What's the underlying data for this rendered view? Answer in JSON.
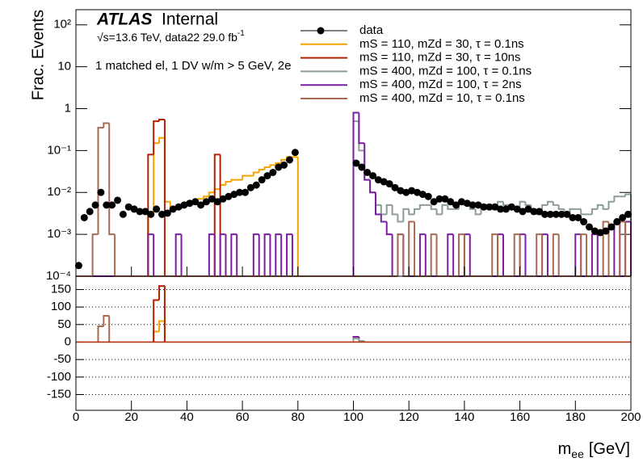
{
  "chart_data": [
    {
      "type": "histogram",
      "title": "ATLAS",
      "title_suffix": "Internal",
      "subtitle": "√s=13.6 TeV, data22 29.0 fb",
      "subtitle_superscript": "-1",
      "annotation": "1 matched el, 1 DV w/m > 5 GeV, 2e",
      "y_label": "Frac. Events",
      "log_y": true,
      "xlim": [
        0,
        200
      ],
      "ylim": [
        0.0001,
        230
      ],
      "yticks": [
        {
          "value": 0.0001,
          "label": "10⁻⁴"
        },
        {
          "value": 0.001,
          "label": "10⁻³"
        },
        {
          "value": 0.01,
          "label": "10⁻²"
        },
        {
          "value": 0.1,
          "label": "10⁻¹"
        },
        1,
        10,
        {
          "value": 100,
          "label": "10²"
        }
      ],
      "bins": [
        0,
        2,
        4,
        6,
        8,
        10,
        12,
        14,
        16,
        18,
        20,
        22,
        24,
        26,
        28,
        30,
        32,
        34,
        36,
        38,
        40,
        42,
        44,
        46,
        48,
        50,
        52,
        54,
        56,
        58,
        60,
        62,
        64,
        66,
        68,
        70,
        72,
        74,
        76,
        78,
        80,
        82,
        84,
        86,
        88,
        90,
        92,
        94,
        96,
        98,
        100,
        102,
        104,
        106,
        108,
        110,
        112,
        114,
        116,
        118,
        120,
        122,
        124,
        126,
        128,
        130,
        132,
        134,
        136,
        138,
        140,
        142,
        144,
        146,
        148,
        150,
        152,
        154,
        156,
        158,
        160,
        162,
        164,
        166,
        168,
        170,
        172,
        174,
        176,
        178,
        180,
        182,
        184,
        186,
        188,
        190,
        192,
        194,
        196,
        198,
        200
      ],
      "series": [
        {
          "name": "data",
          "color": "#000000",
          "x": [
            1,
            3,
            5,
            7,
            9,
            11,
            13,
            15,
            17,
            19,
            21,
            23,
            25,
            27,
            29,
            31,
            33,
            35,
            37,
            39,
            41,
            43,
            45,
            47,
            49,
            51,
            53,
            55,
            57,
            59,
            61,
            63,
            65,
            67,
            69,
            71,
            73,
            75,
            77,
            79,
            101,
            103,
            105,
            107,
            109,
            111,
            113,
            115,
            117,
            119,
            121,
            123,
            125,
            127,
            129,
            131,
            133,
            135,
            137,
            139,
            141,
            143,
            145,
            147,
            149,
            151,
            153,
            155,
            157,
            159,
            161,
            163,
            165,
            167,
            169,
            171,
            173,
            175,
            177,
            179,
            181,
            183,
            185,
            187,
            189,
            191,
            193,
            195,
            197,
            199
          ],
          "values": [
            0.00018,
            0.0025,
            0.0035,
            0.005,
            0.01,
            0.005,
            0.005,
            0.0065,
            0.003,
            0.0045,
            0.004,
            0.0035,
            0.0035,
            0.003,
            0.004,
            0.003,
            0.0032,
            0.004,
            0.0045,
            0.005,
            0.0055,
            0.006,
            0.005,
            0.006,
            0.007,
            0.006,
            0.007,
            0.008,
            0.009,
            0.01,
            0.01,
            0.013,
            0.015,
            0.02,
            0.025,
            0.03,
            0.04,
            0.045,
            0.06,
            0.09,
            0.05,
            0.04,
            0.03,
            0.025,
            0.02,
            0.018,
            0.016,
            0.013,
            0.011,
            0.01,
            0.011,
            0.01,
            0.009,
            0.008,
            0.006,
            0.007,
            0.007,
            0.006,
            0.005,
            0.006,
            0.0055,
            0.005,
            0.005,
            0.0045,
            0.0045,
            0.0045,
            0.004,
            0.004,
            0.0045,
            0.004,
            0.0035,
            0.004,
            0.0035,
            0.0035,
            0.003,
            0.003,
            0.003,
            0.003,
            0.003,
            0.0025,
            0.0025,
            0.002,
            0.0015,
            0.0012,
            0.0011,
            0.0012,
            0.0015,
            0.002,
            0.0025,
            0.003
          ]
        },
        {
          "name": "mS = 110, mZd = 30, τ = 0.1ns",
          "color": "#f5a300",
          "bins": [
            26,
            28,
            30,
            32,
            34,
            36,
            38,
            40,
            42,
            44,
            46,
            48,
            50,
            52,
            54,
            56,
            58,
            60,
            62,
            64,
            66,
            68,
            70,
            72,
            74,
            76,
            78,
            80
          ],
          "values": [
            0.003,
            0.15,
            0.2,
            0.006,
            0.004,
            0.004,
            0.005,
            0.006,
            0.006,
            0.007,
            0.008,
            0.01,
            0.012,
            0.015,
            0.018,
            0.02,
            0.02,
            0.025,
            0.025,
            0.03,
            0.035,
            0.04,
            0.045,
            0.05,
            0.06,
            0.07,
            0.07
          ]
        },
        {
          "name": "mS = 110, mZd = 30, τ = 10ns",
          "color": "#b22200",
          "bins": [
            26,
            28,
            30,
            32,
            50,
            52
          ],
          "values": [
            0.08,
            0.5,
            0.55,
            0,
            0.08
          ]
        },
        {
          "name": "mS = 400, mZd = 100, τ = 0.1ns",
          "color": "#8c9c98",
          "bins": [
            100,
            102,
            104,
            106,
            108,
            110,
            112,
            114,
            116,
            118,
            120,
            122,
            124,
            126,
            128,
            130,
            132,
            134,
            136,
            138,
            140,
            142,
            144,
            146,
            148,
            150,
            152,
            154,
            156,
            158,
            160,
            162,
            164,
            166,
            168,
            170,
            172,
            174,
            176,
            178,
            180,
            182,
            184,
            186,
            188,
            190,
            192,
            194,
            196,
            198,
            200
          ],
          "values": [
            0.5,
            0.1,
            0.02,
            0.01,
            0.005,
            0.003,
            0.005,
            0.003,
            0.002,
            0.004,
            0.003,
            0.004,
            0.005,
            0.005,
            0.004,
            0.003,
            0.005,
            0.004,
            0.004,
            0.006,
            0.005,
            0.004,
            0.003,
            0.004,
            0.005,
            0.004,
            0.006,
            0.005,
            0.004,
            0.004,
            0.006,
            0.005,
            0.004,
            0.003,
            0.005,
            0.006,
            0.005,
            0.004,
            0.003,
            0.004,
            0.004,
            0.003,
            0.003,
            0.004,
            0.005,
            0.004,
            0.006,
            0.008,
            0.008,
            0.009
          ]
        },
        {
          "name": "mS = 400, mZd = 100, τ = 2ns",
          "color": "#7a1fa2",
          "values": [
            0,
            0,
            0,
            0,
            0,
            0,
            0,
            0,
            0,
            0,
            0,
            0,
            0,
            0.001,
            0,
            0,
            0,
            0,
            0.001,
            0,
            0,
            0,
            0,
            0,
            0.001,
            0,
            0.001,
            0,
            0.001,
            0,
            0,
            0,
            0.001,
            0,
            0.001,
            0,
            0.001,
            0,
            0.001,
            0,
            0,
            0,
            0,
            0,
            0,
            0,
            0,
            0,
            0,
            0,
            0.8,
            0.15,
            0.02,
            0.01,
            0.003,
            0.002,
            0.001,
            0,
            0.001,
            0,
            0,
            0,
            0.001,
            0,
            0,
            0,
            0,
            0.001,
            0,
            0,
            0.001,
            0,
            0,
            0,
            0,
            0,
            0.001,
            0,
            0,
            0,
            0.001,
            0,
            0,
            0,
            0.001,
            0,
            0,
            0,
            0,
            0,
            0.001,
            0,
            0,
            0.001,
            0,
            0,
            0,
            0.002,
            0,
            0.002
          ]
        },
        {
          "name": "mS = 400, mZd = 10, τ = 0.1ns",
          "color": "#a86a50",
          "values": [
            0,
            0,
            0,
            0.001,
            0.35,
            0.45,
            0.001,
            0,
            0,
            0,
            0,
            0,
            0,
            0,
            0,
            0,
            0,
            0,
            0,
            0,
            0,
            0,
            0,
            0,
            0,
            0,
            0,
            0,
            0,
            0,
            0,
            0,
            0,
            0,
            0,
            0,
            0,
            0,
            0,
            0,
            0,
            0,
            0,
            0,
            0,
            0,
            0,
            0,
            0,
            0,
            0,
            0,
            0,
            0,
            0,
            0,
            0,
            0,
            0.001,
            0,
            0.002,
            0,
            0,
            0,
            0.001,
            0,
            0,
            0,
            0,
            0.001,
            0,
            0,
            0,
            0,
            0,
            0.001,
            0,
            0,
            0,
            0.001,
            0,
            0,
            0,
            0.001,
            0,
            0,
            0.001,
            0,
            0,
            0,
            0,
            0.001,
            0,
            0,
            0,
            0.002,
            0,
            0,
            0.002,
            0
          ]
        }
      ]
    },
    {
      "type": "histogram",
      "x_label": {
        "symbol": "m",
        "subscript": "ee",
        "unit": "[GeV]"
      },
      "xlim": [
        0,
        200
      ],
      "ylim": [
        -195,
        188
      ],
      "xticks": [
        0,
        20,
        40,
        60,
        80,
        100,
        120,
        140,
        160,
        180,
        200
      ],
      "yticks": [
        -150,
        -100,
        -50,
        0,
        50,
        100,
        150
      ],
      "grid": true,
      "series": [
        {
          "color": "#a86a50",
          "bins": [
            8,
            10,
            12
          ],
          "values": [
            45,
            75
          ]
        },
        {
          "color": "#f5a300",
          "bins": [
            28,
            30,
            32
          ],
          "values": [
            30,
            60
          ]
        },
        {
          "color": "#b22200",
          "bins": [
            28,
            30,
            32
          ],
          "values": [
            120,
            160
          ]
        },
        {
          "color": "#7a1fa2",
          "bins": [
            100,
            102
          ],
          "values": [
            15
          ]
        },
        {
          "color": "#8c9c98",
          "bins": [
            100,
            102,
            104
          ],
          "values": [
            10,
            3
          ]
        }
      ]
    }
  ]
}
